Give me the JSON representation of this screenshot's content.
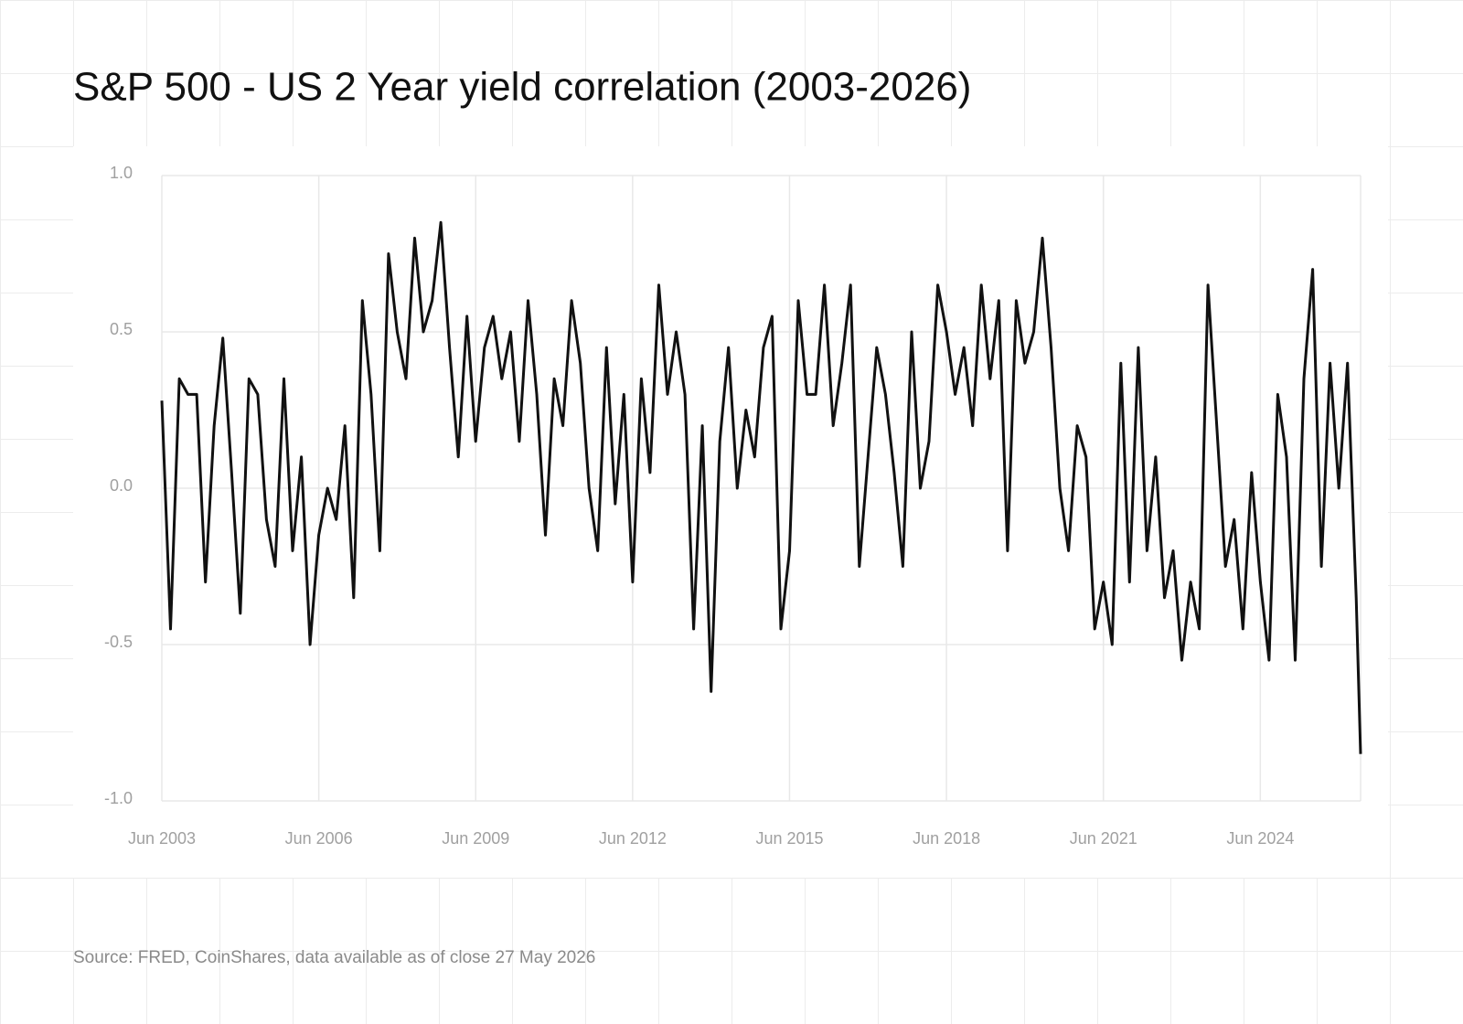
{
  "chart_data": {
    "type": "line",
    "title": "S&P 500 - US 2 Year yield correlation (2003-2026)",
    "source": "Source: FRED, CoinShares, data available as of close 27 May 2026",
    "x": [
      "2003-06",
      "2003-08",
      "2003-10",
      "2003-12",
      "2004-02",
      "2004-04",
      "2004-06",
      "2004-08",
      "2004-10",
      "2004-12",
      "2005-02",
      "2005-04",
      "2005-06",
      "2005-08",
      "2005-10",
      "2005-12",
      "2006-02",
      "2006-04",
      "2006-06",
      "2006-08",
      "2006-10",
      "2006-12",
      "2007-02",
      "2007-04",
      "2007-06",
      "2007-08",
      "2007-10",
      "2007-12",
      "2008-02",
      "2008-04",
      "2008-06",
      "2008-08",
      "2008-10",
      "2008-12",
      "2009-02",
      "2009-04",
      "2009-06",
      "2009-08",
      "2009-10",
      "2009-12",
      "2010-02",
      "2010-04",
      "2010-06",
      "2010-08",
      "2010-10",
      "2010-12",
      "2011-02",
      "2011-04",
      "2011-06",
      "2011-08",
      "2011-10",
      "2011-12",
      "2012-02",
      "2012-04",
      "2012-06",
      "2012-08",
      "2012-10",
      "2012-12",
      "2013-02",
      "2013-04",
      "2013-06",
      "2013-08",
      "2013-10",
      "2013-12",
      "2014-02",
      "2014-04",
      "2014-06",
      "2014-08",
      "2014-10",
      "2014-12",
      "2015-02",
      "2015-04",
      "2015-06",
      "2015-08",
      "2015-10",
      "2015-12",
      "2016-02",
      "2016-04",
      "2016-06",
      "2016-08",
      "2016-10",
      "2016-12",
      "2017-02",
      "2017-04",
      "2017-06",
      "2017-08",
      "2017-10",
      "2017-12",
      "2018-02",
      "2018-04",
      "2018-06",
      "2018-08",
      "2018-10",
      "2018-12",
      "2019-02",
      "2019-04",
      "2019-06",
      "2019-08",
      "2019-10",
      "2019-12",
      "2020-02",
      "2020-04",
      "2020-06",
      "2020-08",
      "2020-10",
      "2020-12",
      "2021-02",
      "2021-04",
      "2021-06",
      "2021-08",
      "2021-10",
      "2021-12",
      "2022-02",
      "2022-04",
      "2022-06",
      "2022-08",
      "2022-10",
      "2022-12",
      "2023-02",
      "2023-04",
      "2023-06",
      "2023-08",
      "2023-10",
      "2023-12",
      "2024-02",
      "2024-04",
      "2024-06",
      "2024-08",
      "2024-10",
      "2024-12",
      "2025-02",
      "2025-04",
      "2025-06",
      "2025-08",
      "2025-10",
      "2025-12",
      "2026-02",
      "2026-04",
      "2026-05"
    ],
    "series": [
      {
        "color": "#111111",
        "values": [
          0.28,
          -0.45,
          0.35,
          0.3,
          0.3,
          -0.3,
          0.2,
          0.48,
          0.05,
          -0.4,
          0.35,
          0.3,
          -0.1,
          -0.25,
          0.35,
          -0.2,
          0.1,
          -0.5,
          -0.15,
          0.0,
          -0.1,
          0.2,
          -0.35,
          0.6,
          0.3,
          -0.2,
          0.75,
          0.5,
          0.35,
          0.8,
          0.5,
          0.6,
          0.85,
          0.45,
          0.1,
          0.55,
          0.15,
          0.45,
          0.55,
          0.35,
          0.5,
          0.15,
          0.6,
          0.3,
          -0.15,
          0.35,
          0.2,
          0.6,
          0.4,
          0.0,
          -0.2,
          0.45,
          -0.05,
          0.3,
          -0.3,
          0.35,
          0.05,
          0.65,
          0.3,
          0.5,
          0.3,
          -0.45,
          0.2,
          -0.65,
          0.15,
          0.45,
          0.0,
          0.25,
          0.1,
          0.45,
          0.55,
          -0.45,
          -0.2,
          0.6,
          0.3,
          0.3,
          0.65,
          0.2,
          0.4,
          0.65,
          -0.25,
          0.1,
          0.45,
          0.3,
          0.05,
          -0.25,
          0.5,
          0.0,
          0.15,
          0.65,
          0.5,
          0.3,
          0.45,
          0.2,
          0.65,
          0.35,
          0.6,
          -0.2,
          0.6,
          0.4,
          0.5,
          0.8,
          0.45,
          0.0,
          -0.2,
          0.2,
          0.1,
          -0.45,
          -0.3,
          -0.5,
          0.4,
          -0.3,
          0.45,
          -0.2,
          0.1,
          -0.35,
          -0.2,
          -0.55,
          -0.3,
          -0.45,
          0.65,
          0.2,
          -0.25,
          -0.1,
          -0.45,
          0.05,
          -0.3,
          -0.55,
          0.3,
          0.1,
          -0.55,
          0.35,
          0.7,
          -0.25,
          0.4,
          0.0,
          0.4,
          -0.35,
          -0.85
        ]
      }
    ],
    "xlim": [
      "2003-06",
      "2026-05"
    ],
    "xticks": [
      {
        "value": "2003-06",
        "label": "Jun 2003"
      },
      {
        "value": "2006-06",
        "label": "Jun 2006"
      },
      {
        "value": "2009-06",
        "label": "Jun 2009"
      },
      {
        "value": "2012-06",
        "label": "Jun 2012"
      },
      {
        "value": "2015-06",
        "label": "Jun 2015"
      },
      {
        "value": "2018-06",
        "label": "Jun 2018"
      },
      {
        "value": "2021-06",
        "label": "Jun 2021"
      },
      {
        "value": "2024-06",
        "label": "Jun 2024"
      }
    ],
    "ylim": [
      -1,
      1
    ],
    "yticks": [
      {
        "value": -1,
        "label": "-1.0"
      },
      -0.5,
      {
        "value": 0,
        "label": "0.0"
      },
      0.5,
      {
        "value": 1,
        "label": "1.0"
      }
    ],
    "grid": true
  }
}
